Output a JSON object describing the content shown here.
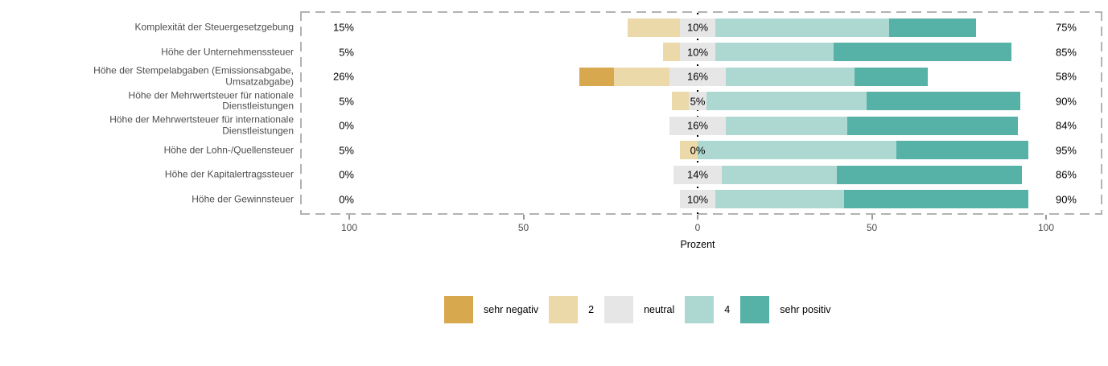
{
  "chart_data": {
    "type": "diverging-stacked-bar",
    "title": "",
    "x_axis": {
      "title": "Prozent",
      "ticks": [
        {
          "value": -100,
          "label": "100"
        },
        {
          "value": -50,
          "label": "50"
        },
        {
          "value": 0,
          "label": "0"
        },
        {
          "value": 50,
          "label": "50"
        },
        {
          "value": 100,
          "label": "100"
        }
      ],
      "range": [
        -114,
        116
      ]
    },
    "categories": [
      "Komplexität der Steuergesetzgebung",
      "Höhe der Unternehmenssteuer",
      "Höhe der Stempelabgaben (Emissionsabgabe,\nUmsatzabgabe)",
      "Höhe der Mehrwertsteuer für nationale\nDienstleistungen",
      "Höhe der Mehrwertsteuer für internationale\nDienstleistungen",
      "Höhe der Lohn-/Quellensteuer",
      "Höhe der Kapitalertragssteuer",
      "Höhe der Gewinnsteuer"
    ],
    "series": [
      {
        "name": "sehr negativ",
        "color": "#D8A84F",
        "values": [
          0,
          0,
          10,
          0,
          0,
          0,
          0,
          0
        ]
      },
      {
        "name": "2",
        "color": "#EBD9A9",
        "values": [
          15,
          5,
          16,
          5,
          0,
          5,
          0,
          0
        ]
      },
      {
        "name": "neutral",
        "color": "#E6E6E6",
        "values": [
          10,
          10,
          16,
          5,
          16,
          0,
          14,
          10
        ]
      },
      {
        "name": "4",
        "color": "#ADD8D2",
        "values": [
          50,
          34,
          37,
          46,
          35,
          57,
          33,
          37
        ]
      },
      {
        "name": "sehr positiv",
        "color": "#56B1A6",
        "values": [
          25,
          51,
          21,
          44,
          49,
          38,
          53,
          53
        ]
      }
    ],
    "row_labels": {
      "left": [
        "15%",
        "5%",
        "26%",
        "5%",
        "0%",
        "5%",
        "0%",
        "0%"
      ],
      "center": [
        "10%",
        "10%",
        "16%",
        "5%",
        "16%",
        "0%",
        "14%",
        "10%"
      ],
      "right": [
        "75%",
        "85%",
        "58%",
        "90%",
        "84%",
        "95%",
        "86%",
        "90%"
      ]
    },
    "legend": [
      {
        "label": "sehr negativ",
        "color": "#D8A84F"
      },
      {
        "label": "2",
        "color": "#EBD9A9"
      },
      {
        "label": "neutral",
        "color": "#E6E6E6"
      },
      {
        "label": "4",
        "color": "#ADD8D2"
      },
      {
        "label": "sehr positiv",
        "color": "#56B1A6"
      }
    ]
  },
  "colors": {
    "background": "#FFFFFF",
    "panel_border": "#B3B3B3",
    "zero_line": "#000000",
    "axis_text": "#4D4D4D",
    "value_text": "#000000"
  }
}
